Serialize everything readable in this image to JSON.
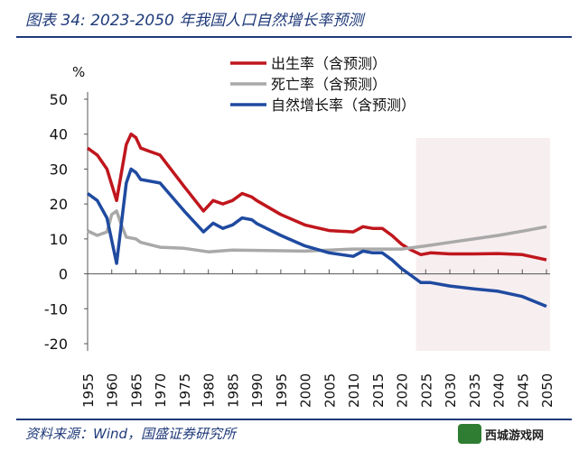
{
  "title": "图表 34:  2023-2050 年我国人口自然增长率预测",
  "source": "资料来源：Wind，国盛证券研究所",
  "watermark": "西城游戏网",
  "chart_data": {
    "type": "line",
    "title": "",
    "ylabel": "%",
    "xlabel": "",
    "ylim": [
      -20,
      50
    ],
    "yticks": [
      -20,
      -10,
      0,
      10,
      20,
      30,
      40,
      50
    ],
    "xlim": [
      1955,
      2050
    ],
    "xticks": [
      1955,
      1960,
      1965,
      1970,
      1975,
      1980,
      1985,
      1990,
      1995,
      2000,
      2005,
      2010,
      2015,
      2020,
      2025,
      2030,
      2035,
      2040,
      2045,
      2050
    ],
    "forecast_shaded_from": 2023,
    "shade_color": "#f7eef0",
    "legend_position": "top-center",
    "grid": false,
    "series": [
      {
        "name": "出生率（含预测）",
        "color": "#c0161d",
        "x": [
          1955,
          1957,
          1959,
          1961,
          1963,
          1964,
          1965,
          1966,
          1968,
          1970,
          1975,
          1979,
          1981,
          1983,
          1985,
          1987,
          1989,
          1990,
          1995,
          2000,
          2005,
          2010,
          2012,
          2014,
          2016,
          2018,
          2020,
          2022,
          2024,
          2026,
          2030,
          2035,
          2040,
          2045,
          2050
        ],
        "y": [
          36,
          34,
          30,
          21,
          37,
          40,
          39,
          36,
          35,
          34,
          25,
          18,
          21,
          20,
          21,
          23,
          22,
          21,
          17,
          14,
          12.4,
          12,
          13.5,
          13,
          13,
          11,
          8.5,
          6.8,
          5.5,
          6,
          5.7,
          5.7,
          5.8,
          5.5,
          4
        ]
      },
      {
        "name": "死亡率（含预测）",
        "color": "#a9a9a9",
        "x": [
          1955,
          1957,
          1959,
          1960,
          1961,
          1962,
          1963,
          1965,
          1966,
          1970,
          1975,
          1980,
          1985,
          1990,
          2000,
          2010,
          2020,
          2025,
          2030,
          2035,
          2040,
          2045,
          2050
        ],
        "y": [
          12.3,
          11,
          12,
          17,
          18,
          14,
          10.5,
          10,
          9,
          7.6,
          7.3,
          6.3,
          6.8,
          6.7,
          6.5,
          7.1,
          7.1,
          8,
          9,
          10,
          11,
          12.2,
          13.5
        ]
      },
      {
        "name": "自然增长率（含预测）",
        "color": "#1f4aa0",
        "x": [
          1955,
          1957,
          1959,
          1961,
          1963,
          1964,
          1965,
          1966,
          1970,
          1975,
          1979,
          1981,
          1983,
          1985,
          1987,
          1989,
          1990,
          1995,
          2000,
          2005,
          2010,
          2012,
          2014,
          2016,
          2018,
          2020,
          2022,
          2024,
          2026,
          2030,
          2035,
          2040,
          2045,
          2050
        ],
        "y": [
          23,
          21,
          16,
          3,
          26,
          30,
          29,
          27,
          26,
          18,
          12,
          14.5,
          13,
          14,
          16,
          15.5,
          14.4,
          11,
          8,
          6,
          5,
          6.5,
          6,
          6,
          4,
          1.5,
          -0.5,
          -2.5,
          -2.5,
          -3.5,
          -4.3,
          -5,
          -6.5,
          -9.3
        ]
      }
    ]
  }
}
